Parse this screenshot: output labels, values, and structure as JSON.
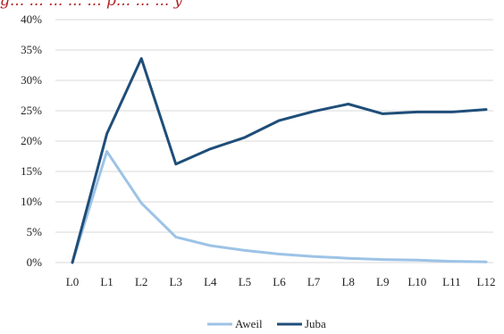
{
  "title_fragment": "g... ... ... ... ... p... ... ... y",
  "chart_data": {
    "type": "line",
    "categories": [
      "L0",
      "L1",
      "L2",
      "L3",
      "L4",
      "L5",
      "L6",
      "L7",
      "L8",
      "L9",
      "L10",
      "L11",
      "L12"
    ],
    "series": [
      {
        "name": "Aweil",
        "color": "#9dc3e6",
        "values": [
          0,
          18.3,
          9.8,
          4.2,
          2.8,
          2.0,
          1.4,
          1.0,
          0.7,
          0.5,
          0.4,
          0.2,
          0.1
        ]
      },
      {
        "name": "Juba",
        "color": "#1f4e79",
        "values": [
          0,
          21.2,
          33.6,
          16.2,
          18.7,
          20.6,
          23.4,
          24.9,
          26.1,
          24.5,
          24.8,
          24.8,
          25.2
        ]
      }
    ],
    "yticks": [
      "0%",
      "5%",
      "10%",
      "15%",
      "20%",
      "25%",
      "30%",
      "35%",
      "40%"
    ],
    "ylim": [
      0,
      40
    ],
    "grid": true,
    "legend_position": "bottom",
    "title": "",
    "xlabel": "",
    "ylabel": ""
  }
}
